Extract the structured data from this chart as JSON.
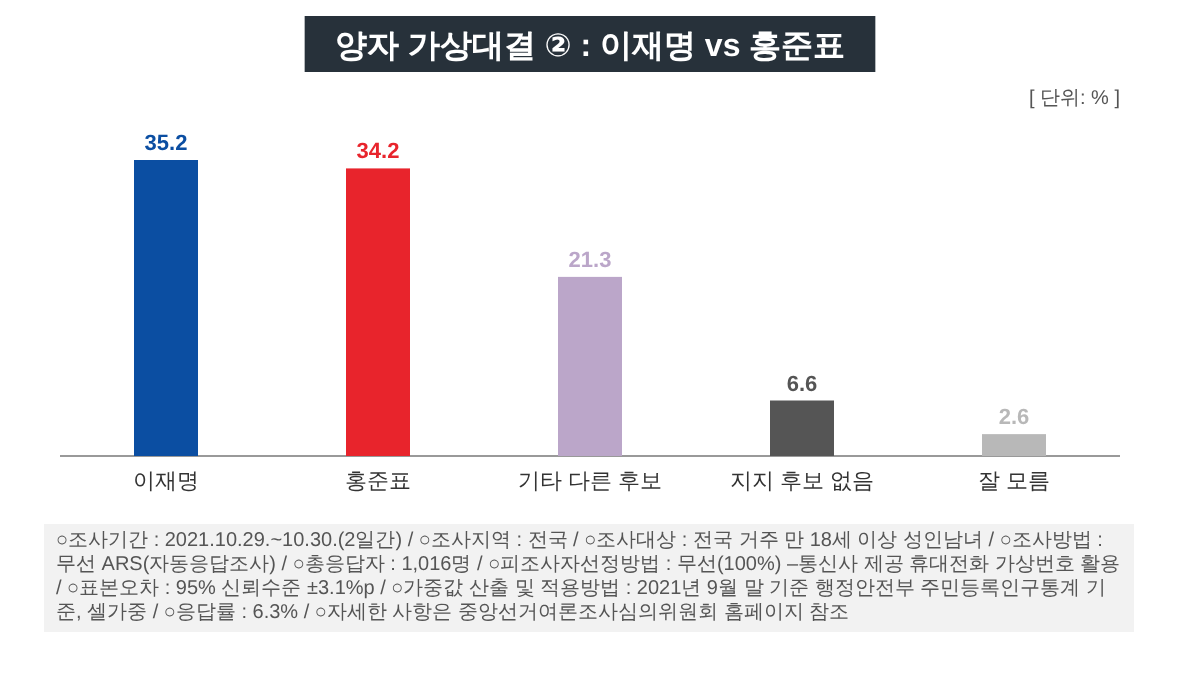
{
  "chart_data": {
    "type": "bar",
    "title": "양자 가상대결 ② : 이재명 vs 홍준표",
    "categories": [
      "이재명",
      "홍준표",
      "기타 다른 후보",
      "지지 후보 없음",
      "잘 모름"
    ],
    "values": [
      35.2,
      34.2,
      21.3,
      6.6,
      2.6
    ],
    "colors": [
      "#0b4ea2",
      "#e8242c",
      "#bba6c9",
      "#555555",
      "#b8b8b8"
    ],
    "data_labels": true,
    "annotations": [
      "[ 단위: % ]",
      "○조사기간 : 2021.10.29.~10.30.(2일간) / ○조사지역 : 전국 / ○조사대상 : 전국 거주 만 18세 이상 성인남녀 / ○조사방법 : 무선 ARS(자동응답조사) / ○총응답자 : 1,016명 /",
      "○피조사자선정방법 : 무선(100%) –통신사 제공 휴대전화 가상번호 활용 / ○표본오차 : 95% 신뢰수준 ±3.1%p / ○가중값 산출 및 적용방법 : 2021년 9월 말 기준 행정안전부",
      "주민등록인구통계 기준, 셀가중 / ○응답률 : 6.3% / ○자세한 사항은 중앙선거여론조사심의위원회 홈페이지 참조"
    ]
  }
}
